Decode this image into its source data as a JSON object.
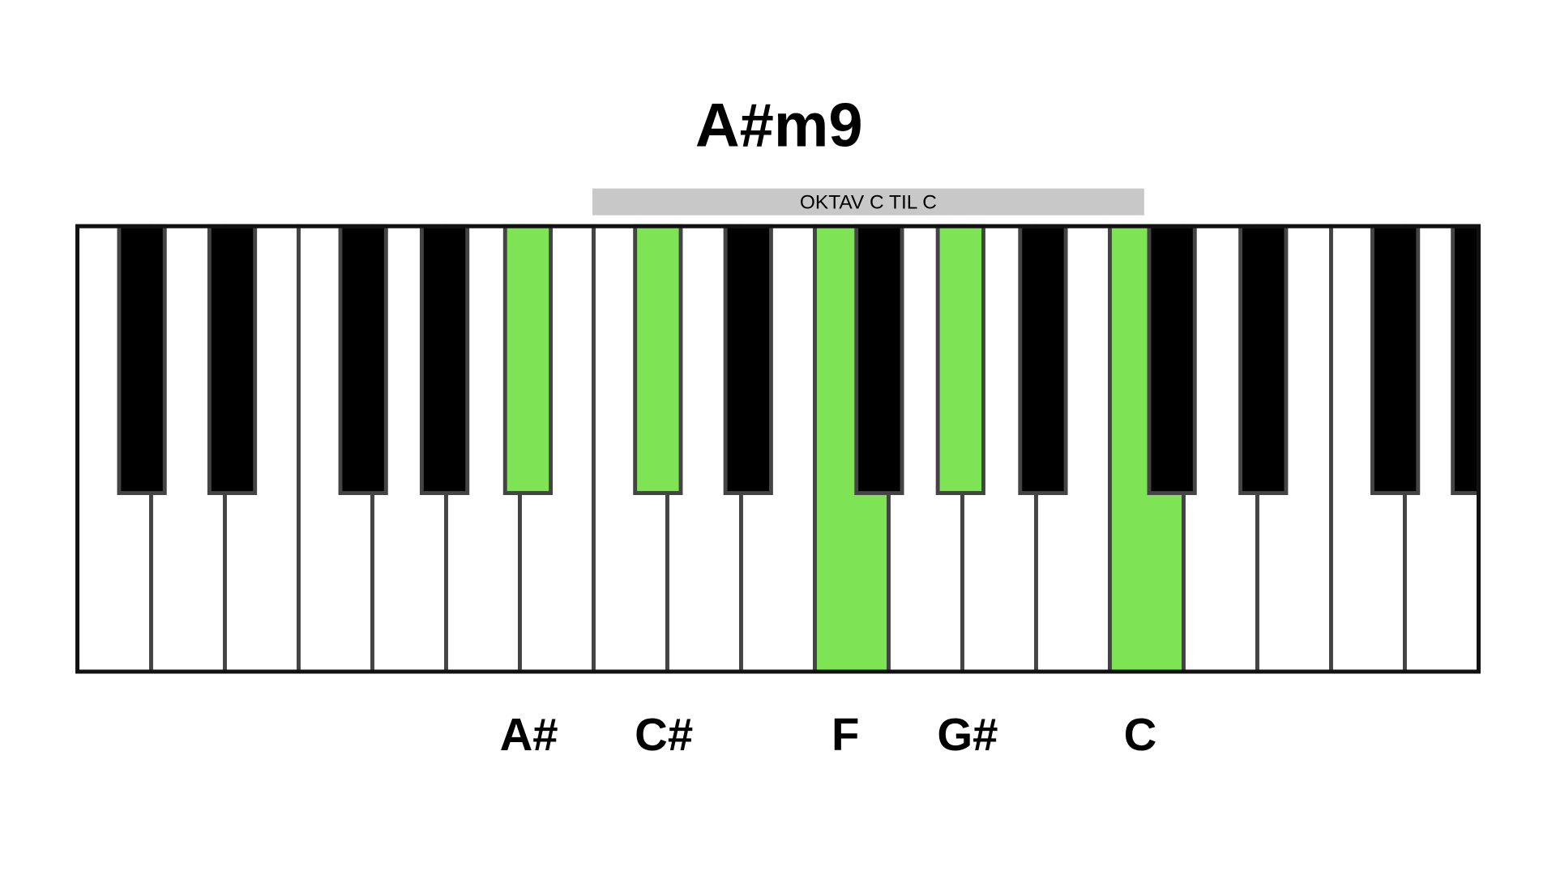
{
  "title": "A#m9",
  "octave_label": "OKTAV C TIL C",
  "notes": [
    "A#",
    "C#",
    "F",
    "G#",
    "C"
  ]
}
